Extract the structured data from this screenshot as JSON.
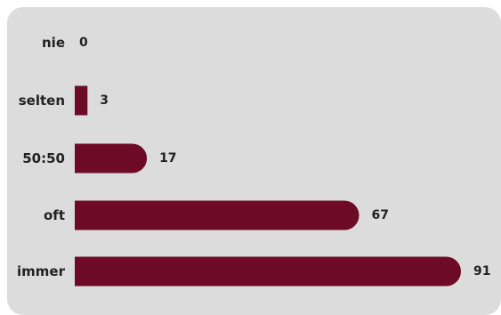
{
  "chart_data": {
    "type": "bar",
    "orientation": "horizontal",
    "categories": [
      "nie",
      "selten",
      "50:50",
      "oft",
      "immer"
    ],
    "values": [
      0,
      3,
      17,
      67,
      91
    ],
    "title": "",
    "xlabel": "",
    "ylabel": "",
    "xlim": [
      0,
      91
    ],
    "grid": false,
    "legend": "none",
    "bar_color": "#6d0a26",
    "background_color": "#dcdcdd"
  }
}
